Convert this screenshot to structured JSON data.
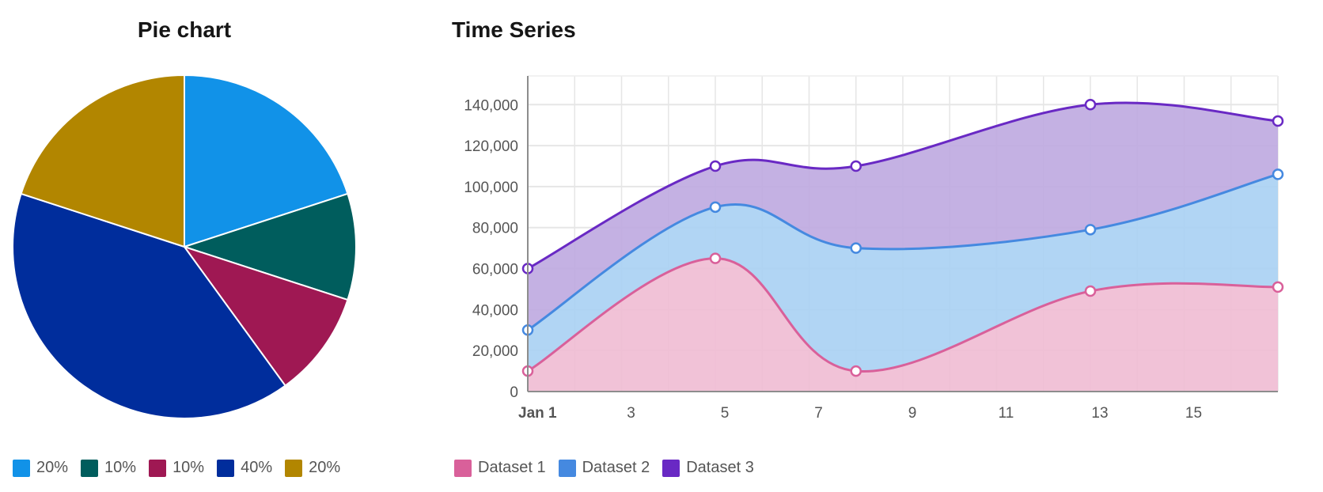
{
  "chart_data": [
    {
      "type": "pie",
      "title": "Pie chart",
      "slices": [
        {
          "label": "20%",
          "value": 20,
          "color": "#1192e8"
        },
        {
          "label": "10%",
          "value": 10,
          "color": "#005d5d"
        },
        {
          "label": "10%",
          "value": 10,
          "color": "#9f1853"
        },
        {
          "label": "40%",
          "value": 40,
          "color": "#002d9c"
        },
        {
          "label": "20%",
          "value": 20,
          "color": "#b28600"
        }
      ],
      "legend_position": "bottom"
    },
    {
      "type": "area",
      "stacked": true,
      "curve": "smooth",
      "title": "Time Series",
      "x": [
        "Jan 1",
        "Jan 5",
        "Jan 8",
        "Jan 13",
        "Jan 17"
      ],
      "x_days": [
        1,
        5,
        8,
        13,
        17
      ],
      "xlim": [
        1,
        17
      ],
      "x_ticks": [
        "Jan 1",
        "3",
        "5",
        "7",
        "9",
        "11",
        "13",
        "15"
      ],
      "x_tick_days": [
        1,
        3,
        5,
        7,
        9,
        11,
        13,
        15
      ],
      "ylim": [
        0,
        154000
      ],
      "y_ticks": [
        "0",
        "20,000",
        "40,000",
        "60,000",
        "80,000",
        "100,000",
        "120,000",
        "140,000"
      ],
      "y_tick_values": [
        0,
        20000,
        40000,
        60000,
        80000,
        100000,
        120000,
        140000
      ],
      "grid": true,
      "legend_position": "bottom",
      "series": [
        {
          "name": "Dataset 1",
          "values": [
            10000,
            65000,
            10000,
            49000,
            51000
          ],
          "color": "#d9609a",
          "fill": "#efbbd3"
        },
        {
          "name": "Dataset 2",
          "values": [
            20000,
            25000,
            60000,
            30000,
            55000
          ],
          "color": "#4589e0",
          "fill": "#a9d0f3"
        },
        {
          "name": "Dataset 3",
          "values": [
            30000,
            20000,
            40000,
            61000,
            26000
          ],
          "color": "#6929c4",
          "fill": "#bea8e0"
        }
      ]
    }
  ]
}
